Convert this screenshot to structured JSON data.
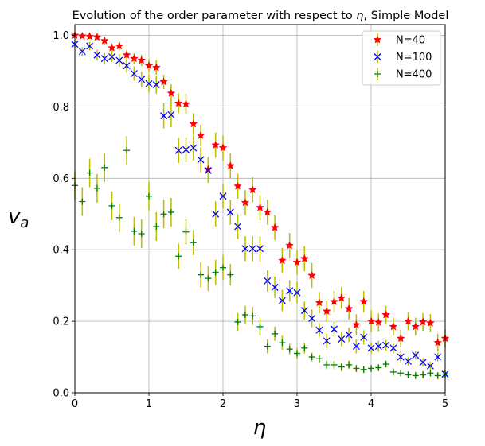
{
  "chart_data": {
    "type": "scatter",
    "title_prefix": "Evolution of the order parameter with respect to ",
    "title_symbol": "η",
    "title_suffix": ", Simple Model",
    "xlabel": "η",
    "ylabel_base": "v",
    "ylabel_sub": "a",
    "xlim": [
      0,
      5
    ],
    "ylim": [
      0,
      1.03
    ],
    "x_ticks": [
      0,
      1,
      2,
      3,
      4,
      5
    ],
    "x_tick_labels": [
      "0",
      "1",
      "2",
      "3",
      "4",
      "5"
    ],
    "y_ticks": [
      0.0,
      0.2,
      0.4,
      0.6,
      0.8,
      1.0
    ],
    "y_tick_labels": [
      "0.0",
      "0.2",
      "0.4",
      "0.6",
      "0.8",
      "1.0"
    ],
    "grid": true,
    "legend_position": "top-right",
    "error_bar_color": "#bfbf00",
    "series": [
      {
        "name": "N=40",
        "marker": "star",
        "color": "#ff0000",
        "x": [
          0.0,
          0.1,
          0.2,
          0.3,
          0.4,
          0.5,
          0.6,
          0.7,
          0.8,
          0.9,
          1.0,
          1.1,
          1.2,
          1.3,
          1.4,
          1.5,
          1.6,
          1.7,
          1.8,
          1.9,
          2.0,
          2.1,
          2.2,
          2.3,
          2.4,
          2.5,
          2.6,
          2.7,
          2.8,
          2.9,
          3.0,
          3.1,
          3.2,
          3.3,
          3.4,
          3.5,
          3.6,
          3.7,
          3.8,
          3.9,
          4.0,
          4.1,
          4.2,
          4.3,
          4.4,
          4.5,
          4.6,
          4.7,
          4.8,
          4.9,
          5.0
        ],
        "y": [
          1.0,
          0.998,
          0.997,
          0.995,
          0.985,
          0.965,
          0.97,
          0.945,
          0.935,
          0.93,
          0.915,
          0.91,
          0.87,
          0.838,
          0.81,
          0.808,
          0.752,
          0.72,
          0.625,
          0.693,
          0.685,
          0.635,
          0.578,
          0.532,
          0.568,
          0.518,
          0.505,
          0.462,
          0.37,
          0.412,
          0.365,
          0.375,
          0.328,
          0.252,
          0.228,
          0.255,
          0.265,
          0.235,
          0.19,
          0.255,
          0.2,
          0.197,
          0.218,
          0.185,
          0.152,
          0.2,
          0.185,
          0.198,
          0.195,
          0.14,
          0.152
        ],
        "err": [
          0.005,
          0.006,
          0.007,
          0.008,
          0.01,
          0.012,
          0.012,
          0.015,
          0.015,
          0.016,
          0.018,
          0.02,
          0.02,
          0.025,
          0.028,
          0.028,
          0.03,
          0.03,
          0.035,
          0.035,
          0.035,
          0.035,
          0.035,
          0.035,
          0.035,
          0.035,
          0.035,
          0.035,
          0.035,
          0.035,
          0.035,
          0.035,
          0.035,
          0.03,
          0.03,
          0.03,
          0.03,
          0.03,
          0.03,
          0.03,
          0.03,
          0.025,
          0.025,
          0.025,
          0.025,
          0.025,
          0.025,
          0.025,
          0.025,
          0.025,
          0.025
        ]
      },
      {
        "name": "N=100",
        "marker": "x",
        "color": "#0000ff",
        "x": [
          0.0,
          0.1,
          0.2,
          0.3,
          0.4,
          0.5,
          0.6,
          0.7,
          0.8,
          0.9,
          1.0,
          1.1,
          1.2,
          1.3,
          1.4,
          1.5,
          1.6,
          1.7,
          1.8,
          1.9,
          2.0,
          2.1,
          2.2,
          2.3,
          2.4,
          2.5,
          2.6,
          2.7,
          2.8,
          2.9,
          3.0,
          3.1,
          3.2,
          3.3,
          3.4,
          3.5,
          3.6,
          3.7,
          3.8,
          3.9,
          4.0,
          4.1,
          4.2,
          4.3,
          4.4,
          4.5,
          4.6,
          4.7,
          4.8,
          4.9,
          5.0
        ],
        "y": [
          0.975,
          0.955,
          0.97,
          0.945,
          0.935,
          0.94,
          0.93,
          0.915,
          0.893,
          0.877,
          0.865,
          0.862,
          0.775,
          0.778,
          0.678,
          0.68,
          0.685,
          0.652,
          0.622,
          0.5,
          0.55,
          0.505,
          0.465,
          0.403,
          0.403,
          0.403,
          0.313,
          0.295,
          0.258,
          0.285,
          0.28,
          0.23,
          0.208,
          0.175,
          0.145,
          0.178,
          0.15,
          0.162,
          0.13,
          0.155,
          0.125,
          0.13,
          0.133,
          0.125,
          0.1,
          0.088,
          0.105,
          0.085,
          0.075,
          0.1,
          0.052
        ],
        "err": [
          0.01,
          0.012,
          0.012,
          0.015,
          0.015,
          0.015,
          0.018,
          0.02,
          0.02,
          0.022,
          0.025,
          0.025,
          0.035,
          0.035,
          0.035,
          0.035,
          0.035,
          0.035,
          0.035,
          0.035,
          0.035,
          0.035,
          0.035,
          0.035,
          0.035,
          0.035,
          0.03,
          0.03,
          0.03,
          0.03,
          0.03,
          0.025,
          0.025,
          0.02,
          0.02,
          0.02,
          0.02,
          0.02,
          0.02,
          0.02,
          0.015,
          0.015,
          0.015,
          0.015,
          0.015,
          0.012,
          0.012,
          0.012,
          0.012,
          0.012,
          0.012
        ]
      },
      {
        "name": "N=400",
        "marker": "plus",
        "color": "#008000",
        "x": [
          0.0,
          0.1,
          0.2,
          0.3,
          0.4,
          0.5,
          0.6,
          0.7,
          0.8,
          0.9,
          1.0,
          1.1,
          1.2,
          1.3,
          1.4,
          1.5,
          1.6,
          1.7,
          1.8,
          1.9,
          2.0,
          2.1,
          2.2,
          2.3,
          2.4,
          2.5,
          2.6,
          2.7,
          2.8,
          2.9,
          3.0,
          3.1,
          3.2,
          3.3,
          3.4,
          3.5,
          3.6,
          3.7,
          3.8,
          3.9,
          4.0,
          4.1,
          4.2,
          4.3,
          4.4,
          4.5,
          4.6,
          4.7,
          4.8,
          4.9,
          5.0
        ],
        "y": [
          0.58,
          0.535,
          0.615,
          0.572,
          0.63,
          0.523,
          0.49,
          0.678,
          0.452,
          0.445,
          0.55,
          0.465,
          0.5,
          0.505,
          0.382,
          0.45,
          0.42,
          0.33,
          0.32,
          0.337,
          0.35,
          0.33,
          0.198,
          0.218,
          0.215,
          0.185,
          0.13,
          0.165,
          0.14,
          0.122,
          0.11,
          0.125,
          0.1,
          0.095,
          0.078,
          0.078,
          0.072,
          0.078,
          0.068,
          0.065,
          0.068,
          0.07,
          0.08,
          0.058,
          0.055,
          0.05,
          0.048,
          0.05,
          0.055,
          0.048,
          0.052
        ],
        "err": [
          0.04,
          0.04,
          0.04,
          0.04,
          0.04,
          0.04,
          0.04,
          0.04,
          0.04,
          0.04,
          0.04,
          0.04,
          0.04,
          0.04,
          0.035,
          0.035,
          0.035,
          0.035,
          0.035,
          0.035,
          0.035,
          0.03,
          0.025,
          0.025,
          0.025,
          0.025,
          0.02,
          0.02,
          0.02,
          0.015,
          0.015,
          0.015,
          0.012,
          0.012,
          0.012,
          0.012,
          0.012,
          0.012,
          0.01,
          0.01,
          0.01,
          0.01,
          0.01,
          0.01,
          0.01,
          0.01,
          0.01,
          0.01,
          0.01,
          0.01,
          0.01
        ]
      }
    ]
  }
}
